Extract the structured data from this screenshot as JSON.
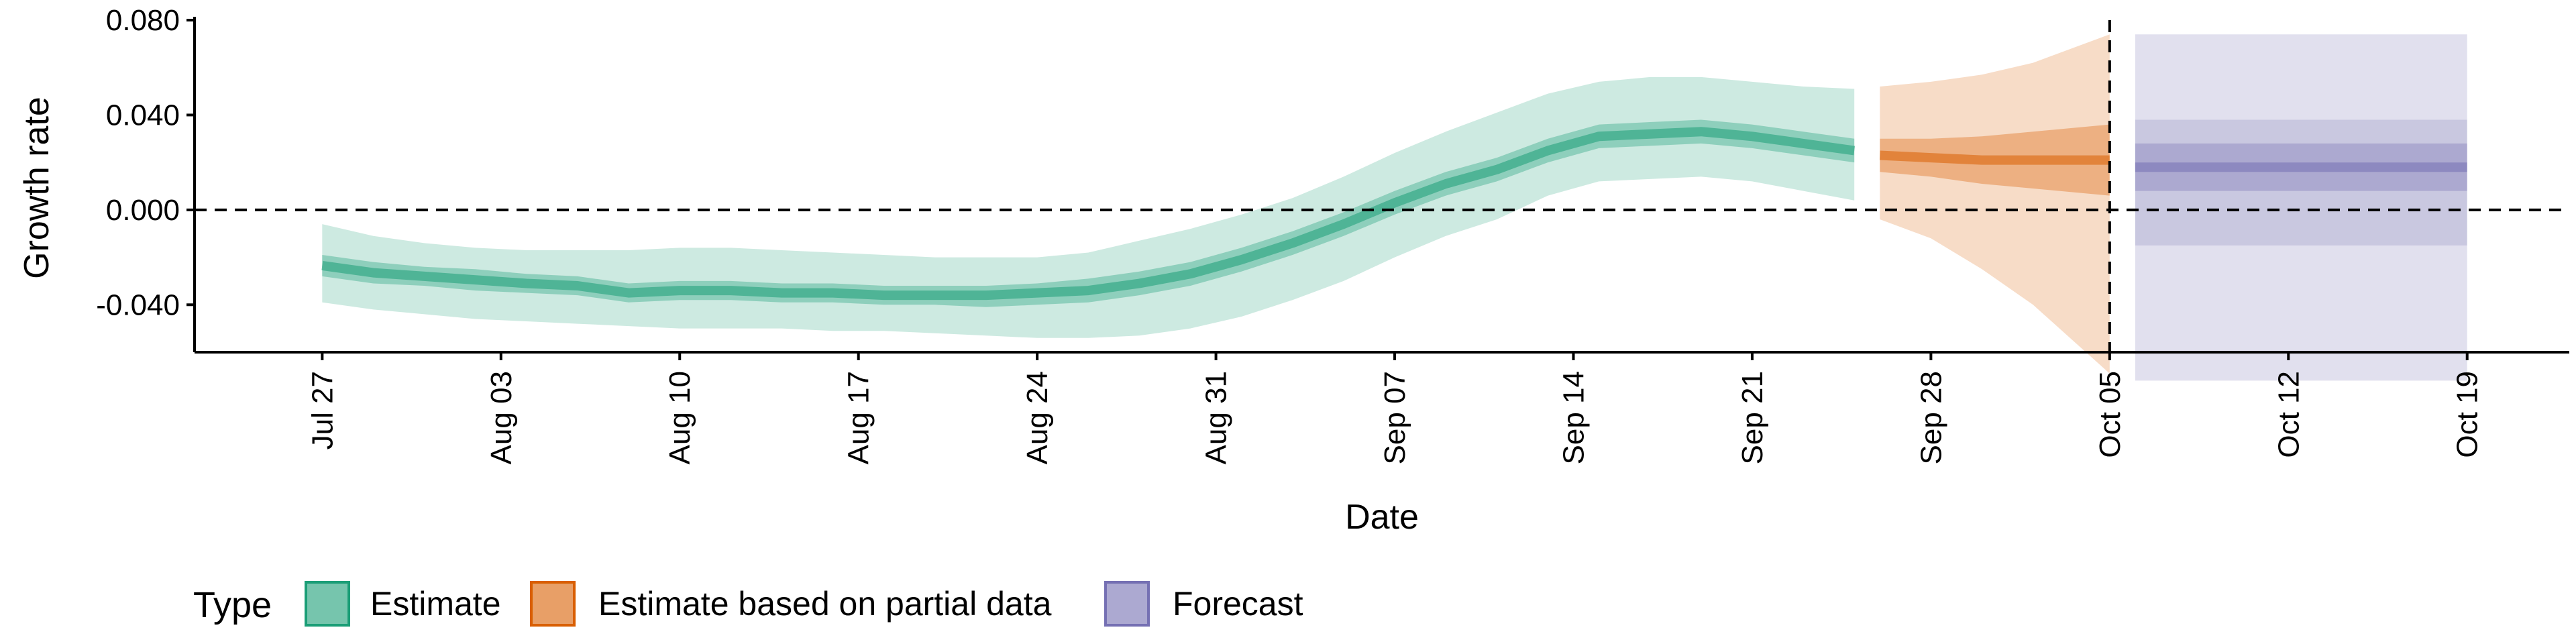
{
  "chart_data": {
    "type": "area",
    "title": "",
    "xlabel": "Date",
    "ylabel": "Growth rate",
    "ylim": [
      -0.06,
      0.08
    ],
    "y_ticks": [
      {
        "value": 0.08,
        "label": "0.080"
      },
      {
        "value": 0.04,
        "label": "0.040"
      },
      {
        "value": 0.0,
        "label": "0.000"
      },
      {
        "value": -0.04,
        "label": "-0.040"
      }
    ],
    "x_range": [
      "2020-07-22",
      "2020-10-23"
    ],
    "x_ticks": [
      {
        "date": "2020-07-27",
        "label": "Jul 27"
      },
      {
        "date": "2020-08-03",
        "label": "Aug 03"
      },
      {
        "date": "2020-08-10",
        "label": "Aug 10"
      },
      {
        "date": "2020-08-17",
        "label": "Aug 17"
      },
      {
        "date": "2020-08-24",
        "label": "Aug 24"
      },
      {
        "date": "2020-08-31",
        "label": "Aug 31"
      },
      {
        "date": "2020-09-07",
        "label": "Sep 07"
      },
      {
        "date": "2020-09-14",
        "label": "Sep 14"
      },
      {
        "date": "2020-09-21",
        "label": "Sep 21"
      },
      {
        "date": "2020-09-28",
        "label": "Sep 28"
      },
      {
        "date": "2020-10-05",
        "label": "Oct 05"
      },
      {
        "date": "2020-10-12",
        "label": "Oct 12"
      },
      {
        "date": "2020-10-19",
        "label": "Oct 19"
      }
    ],
    "reference_lines": [
      {
        "axis": "y",
        "value": 0.0,
        "style": "dashed"
      },
      {
        "axis": "x",
        "date": "2020-10-05",
        "style": "dashed"
      }
    ],
    "grid": false,
    "legend_title": "Type",
    "legend_position": "bottom-left",
    "colors": {
      "Estimate": "#1b9e77",
      "Estimate based on partial data": "#d95f02",
      "Forecast": "#7570b3"
    },
    "series": [
      {
        "name": "Estimate",
        "color": "#1b9e77",
        "points": [
          {
            "date": "2020-07-27",
            "median": -0.0235,
            "lower50": -0.028,
            "upper50": -0.019,
            "lower90": -0.039,
            "upper90": -0.006
          },
          {
            "date": "2020-07-29",
            "median": -0.0265,
            "lower50": -0.031,
            "upper50": -0.022,
            "lower90": -0.042,
            "upper90": -0.011
          },
          {
            "date": "2020-07-31",
            "median": -0.028,
            "lower50": -0.032,
            "upper50": -0.024,
            "lower90": -0.044,
            "upper90": -0.014
          },
          {
            "date": "2020-08-02",
            "median": -0.0295,
            "lower50": -0.034,
            "upper50": -0.025,
            "lower90": -0.046,
            "upper90": -0.016
          },
          {
            "date": "2020-08-04",
            "median": -0.031,
            "lower50": -0.035,
            "upper50": -0.027,
            "lower90": -0.047,
            "upper90": -0.017
          },
          {
            "date": "2020-08-06",
            "median": -0.032,
            "lower50": -0.036,
            "upper50": -0.028,
            "lower90": -0.048,
            "upper90": -0.017
          },
          {
            "date": "2020-08-08",
            "median": -0.035,
            "lower50": -0.039,
            "upper50": -0.031,
            "lower90": -0.049,
            "upper90": -0.017
          },
          {
            "date": "2020-08-10",
            "median": -0.034,
            "lower50": -0.038,
            "upper50": -0.03,
            "lower90": -0.05,
            "upper90": -0.016
          },
          {
            "date": "2020-08-12",
            "median": -0.034,
            "lower50": -0.038,
            "upper50": -0.03,
            "lower90": -0.05,
            "upper90": -0.016
          },
          {
            "date": "2020-08-14",
            "median": -0.035,
            "lower50": -0.039,
            "upper50": -0.031,
            "lower90": -0.05,
            "upper90": -0.017
          },
          {
            "date": "2020-08-16",
            "median": -0.035,
            "lower50": -0.039,
            "upper50": -0.031,
            "lower90": -0.051,
            "upper90": -0.018
          },
          {
            "date": "2020-08-18",
            "median": -0.036,
            "lower50": -0.04,
            "upper50": -0.032,
            "lower90": -0.051,
            "upper90": -0.019
          },
          {
            "date": "2020-08-20",
            "median": -0.036,
            "lower50": -0.04,
            "upper50": -0.032,
            "lower90": -0.052,
            "upper90": -0.02
          },
          {
            "date": "2020-08-22",
            "median": -0.036,
            "lower50": -0.041,
            "upper50": -0.032,
            "lower90": -0.053,
            "upper90": -0.02
          },
          {
            "date": "2020-08-24",
            "median": -0.035,
            "lower50": -0.04,
            "upper50": -0.031,
            "lower90": -0.054,
            "upper90": -0.02
          },
          {
            "date": "2020-08-26",
            "median": -0.034,
            "lower50": -0.039,
            "upper50": -0.029,
            "lower90": -0.054,
            "upper90": -0.018
          },
          {
            "date": "2020-08-28",
            "median": -0.031,
            "lower50": -0.036,
            "upper50": -0.026,
            "lower90": -0.053,
            "upper90": -0.013
          },
          {
            "date": "2020-08-30",
            "median": -0.027,
            "lower50": -0.032,
            "upper50": -0.022,
            "lower90": -0.05,
            "upper90": -0.008
          },
          {
            "date": "2020-09-01",
            "median": -0.021,
            "lower50": -0.026,
            "upper50": -0.016,
            "lower90": -0.045,
            "upper90": -0.002
          },
          {
            "date": "2020-09-03",
            "median": -0.014,
            "lower50": -0.019,
            "upper50": -0.009,
            "lower90": -0.038,
            "upper90": 0.005
          },
          {
            "date": "2020-09-05",
            "median": -0.006,
            "lower50": -0.011,
            "upper50": -0.001,
            "lower90": -0.03,
            "upper90": 0.014
          },
          {
            "date": "2020-09-07",
            "median": 0.003,
            "lower50": -0.002,
            "upper50": 0.008,
            "lower90": -0.02,
            "upper90": 0.024
          },
          {
            "date": "2020-09-09",
            "median": 0.011,
            "lower50": 0.006,
            "upper50": 0.016,
            "lower90": -0.011,
            "upper90": 0.033
          },
          {
            "date": "2020-09-11",
            "median": 0.017,
            "lower50": 0.012,
            "upper50": 0.022,
            "lower90": -0.004,
            "upper90": 0.041
          },
          {
            "date": "2020-09-13",
            "median": 0.025,
            "lower50": 0.02,
            "upper50": 0.03,
            "lower90": 0.006,
            "upper90": 0.049
          },
          {
            "date": "2020-09-15",
            "median": 0.031,
            "lower50": 0.026,
            "upper50": 0.036,
            "lower90": 0.012,
            "upper90": 0.054
          },
          {
            "date": "2020-09-17",
            "median": 0.032,
            "lower50": 0.027,
            "upper50": 0.037,
            "lower90": 0.013,
            "upper90": 0.056
          },
          {
            "date": "2020-09-19",
            "median": 0.033,
            "lower50": 0.028,
            "upper50": 0.038,
            "lower90": 0.014,
            "upper90": 0.056
          },
          {
            "date": "2020-09-21",
            "median": 0.031,
            "lower50": 0.026,
            "upper50": 0.036,
            "lower90": 0.012,
            "upper90": 0.054
          },
          {
            "date": "2020-09-23",
            "median": 0.028,
            "lower50": 0.023,
            "upper50": 0.033,
            "lower90": 0.008,
            "upper90": 0.052
          },
          {
            "date": "2020-09-25",
            "median": 0.025,
            "lower50": 0.02,
            "upper50": 0.03,
            "lower90": 0.004,
            "upper90": 0.051
          }
        ]
      },
      {
        "name": "Estimate based on partial data",
        "color": "#d95f02",
        "points": [
          {
            "date": "2020-09-26",
            "median": 0.023,
            "lower50": 0.016,
            "upper50": 0.03,
            "lower90": -0.004,
            "upper90": 0.052
          },
          {
            "date": "2020-09-28",
            "median": 0.022,
            "lower50": 0.014,
            "upper50": 0.03,
            "lower90": -0.012,
            "upper90": 0.054
          },
          {
            "date": "2020-09-30",
            "median": 0.021,
            "lower50": 0.011,
            "upper50": 0.031,
            "lower90": -0.025,
            "upper90": 0.057
          },
          {
            "date": "2020-10-02",
            "median": 0.021,
            "lower50": 0.009,
            "upper50": 0.033,
            "lower90": -0.04,
            "upper90": 0.062
          },
          {
            "date": "2020-10-05",
            "median": 0.021,
            "lower50": 0.006,
            "upper50": 0.036,
            "lower90": -0.069,
            "upper90": 0.074
          }
        ]
      },
      {
        "name": "Forecast",
        "color": "#7570b3",
        "points": [
          {
            "date": "2020-10-06",
            "median": 0.018,
            "lower50": 0.008,
            "upper50": 0.028,
            "lower90": -0.015,
            "upper90": 0.038,
            "lower_outer": -0.072,
            "upper_outer": 0.074
          },
          {
            "date": "2020-10-19",
            "median": 0.018,
            "lower50": 0.008,
            "upper50": 0.028,
            "lower90": -0.015,
            "upper90": 0.038,
            "lower_outer": -0.072,
            "upper_outer": 0.074
          }
        ]
      }
    ]
  }
}
